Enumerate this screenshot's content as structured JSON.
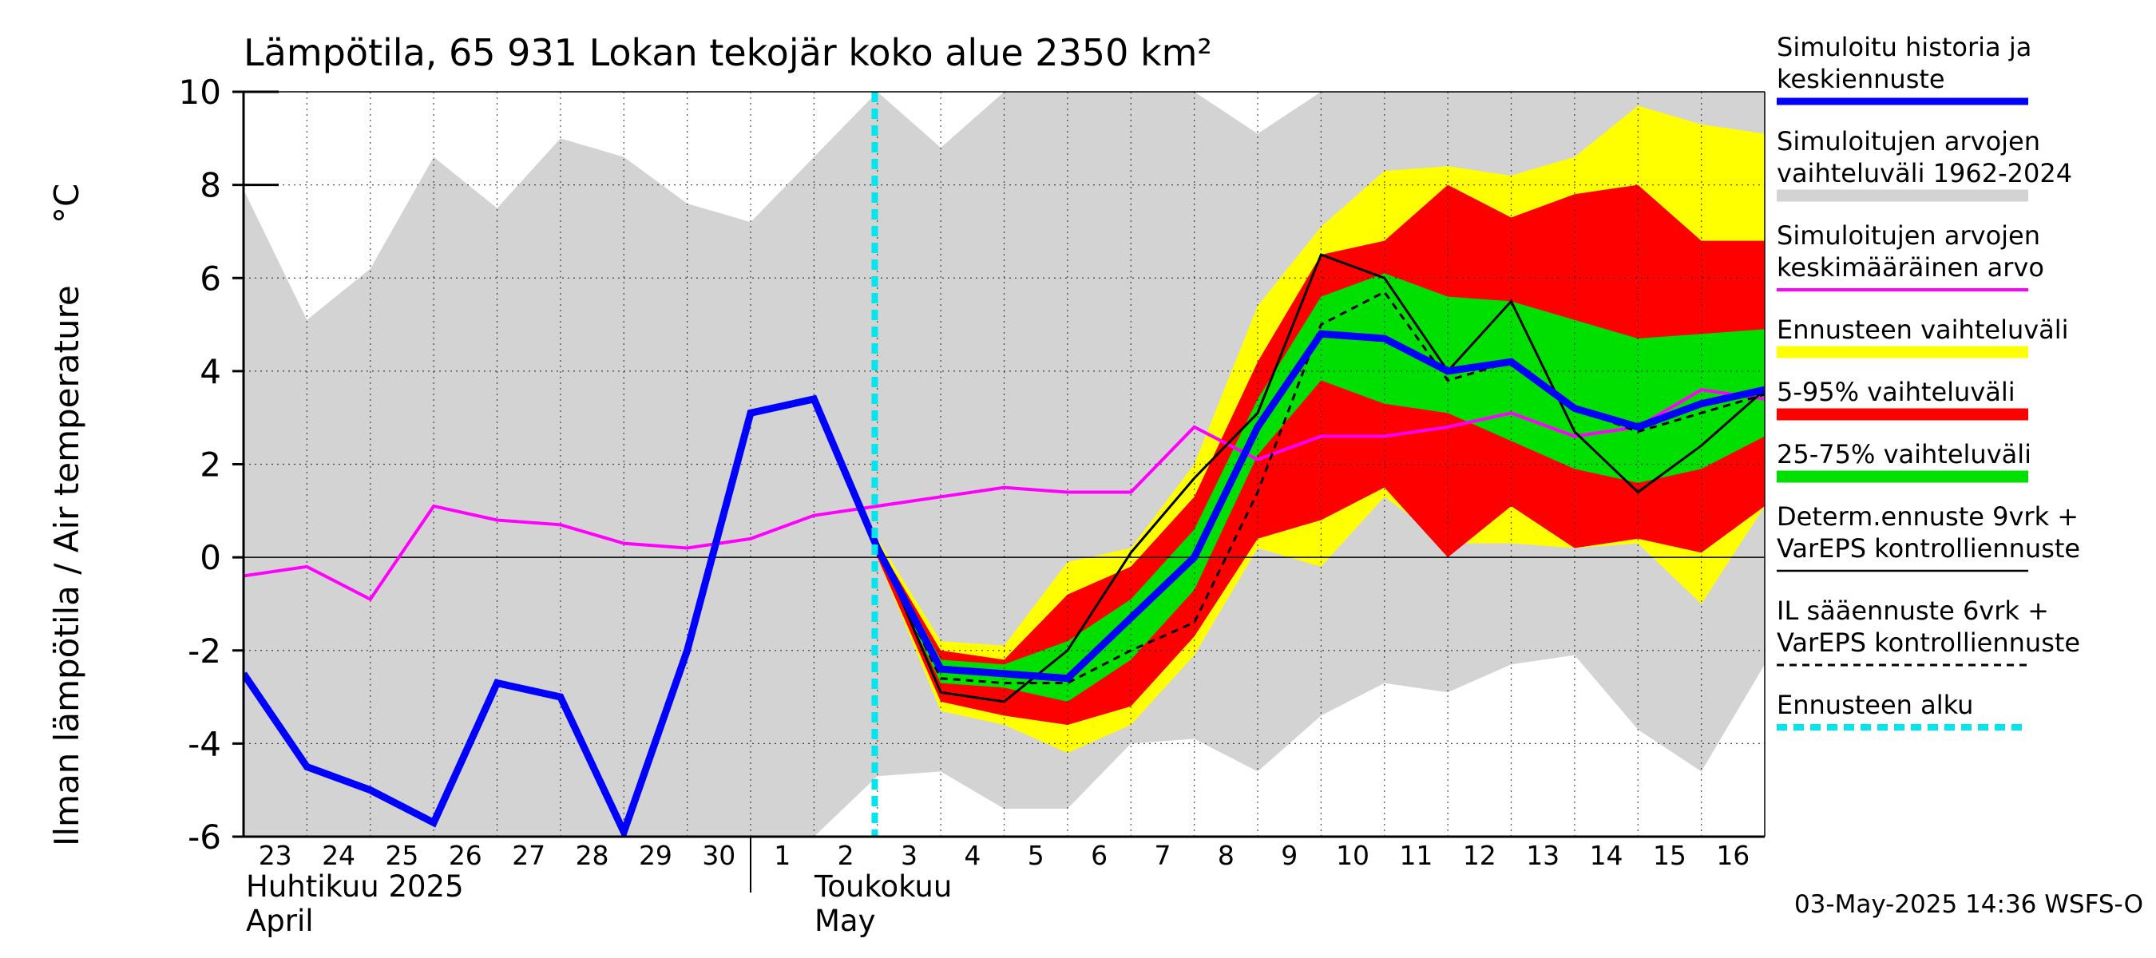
{
  "title": "Lämpötila, 65 931 Lokan tekojär koko alue 2350 km²",
  "y_axis_label": "Ilman lämpötila / Air temperature",
  "y_unit": "°C",
  "timestamp": "03-May-2025 14:36 WSFS-O",
  "month_labels": [
    {
      "fi": "Huhtikuu  2025",
      "en": "April"
    },
    {
      "fi": "Toukokuu",
      "en": "May"
    }
  ],
  "colors": {
    "history_and_mean": "#0000ff",
    "historical_range": "#d3d3d3",
    "historical_mean": "#ff00ff",
    "forecast_range": "#ffff00",
    "p5_95": "#ff0000",
    "p25_75": "#00e000",
    "determ": "#000000",
    "il_forecast": "#000000",
    "forecast_start": "#00e5ee"
  },
  "legend": [
    {
      "label": [
        "Simuloitu historia ja",
        "keskiennuste"
      ],
      "color": "#0000ff",
      "style": "thick"
    },
    {
      "label": [
        "Simuloitujen arvojen",
        "vaihteluväli 1962-2024"
      ],
      "color": "#d3d3d3",
      "style": "band"
    },
    {
      "label": [
        "Simuloitujen arvojen",
        "keskimääräinen arvo"
      ],
      "color": "#ff00ff",
      "style": "line"
    },
    {
      "label": [
        "Ennusteen vaihteluväli"
      ],
      "color": "#ffff00",
      "style": "band"
    },
    {
      "label": [
        "5-95% vaihteluväli"
      ],
      "color": "#ff0000",
      "style": "band"
    },
    {
      "label": [
        "25-75% vaihteluväli"
      ],
      "color": "#00e000",
      "style": "band"
    },
    {
      "label": [
        "Determ.ennuste 9vrk +",
        "VarEPS kontrolliennuste"
      ],
      "color": "#000000",
      "style": "thin"
    },
    {
      "label": [
        "IL sääennuste 6vrk  +",
        "  VarEPS kontrolliennuste"
      ],
      "color": "#000000",
      "style": "dashed"
    },
    {
      "label": [
        "Ennusteen alku"
      ],
      "color": "#00e5ee",
      "style": "cyan-dashed"
    }
  ],
  "chart_data": {
    "type": "line",
    "title": "Lämpötila, 65 931 Lokan tekojär koko alue 2350 km²",
    "ylabel": "Ilman lämpötila / Air temperature   °C",
    "ylim": [
      -6,
      10
    ],
    "yticks": [
      -6,
      -4,
      -2,
      0,
      2,
      4,
      6,
      8,
      10
    ],
    "x_day_labels": [
      "23",
      "24",
      "25",
      "26",
      "27",
      "28",
      "29",
      "30",
      "1",
      "2",
      "3",
      "4",
      "5",
      "6",
      "7",
      "8",
      "9",
      "10",
      "11",
      "12",
      "13",
      "14",
      "15",
      "16"
    ],
    "x_dates": [
      "2025-04-23",
      "2025-04-24",
      "2025-04-25",
      "2025-04-26",
      "2025-04-27",
      "2025-04-28",
      "2025-04-29",
      "2025-04-30",
      "2025-05-01",
      "2025-05-02",
      "2025-05-03",
      "2025-05-04",
      "2025-05-05",
      "2025-05-06",
      "2025-05-07",
      "2025-05-08",
      "2025-05-09",
      "2025-05-10",
      "2025-05-11",
      "2025-05-12",
      "2025-05-13",
      "2025-05-14",
      "2025-05-15",
      "2025-05-16",
      "2025-05-17"
    ],
    "forecast_start": "2025-05-02 23:00",
    "grid": true,
    "legend_position": "right",
    "series": [
      {
        "name": "Simuloitujen arvojen vaihteluväli 1962-2024",
        "kind": "band",
        "x": [
          "2025-04-23",
          "2025-04-24",
          "2025-04-25",
          "2025-04-26",
          "2025-04-27",
          "2025-04-28",
          "2025-04-29",
          "2025-04-30",
          "2025-05-01",
          "2025-05-02",
          "2025-05-03",
          "2025-05-04",
          "2025-05-05",
          "2025-05-06",
          "2025-05-07",
          "2025-05-08",
          "2025-05-09",
          "2025-05-10",
          "2025-05-11",
          "2025-05-12",
          "2025-05-13",
          "2025-05-14",
          "2025-05-15",
          "2025-05-16",
          "2025-05-17"
        ],
        "lower": [
          -6,
          -6,
          -6,
          -6,
          -6,
          -6,
          -6,
          -6,
          -6,
          -6,
          -4.7,
          -4.6,
          -5.4,
          -5.4,
          -4,
          -3.9,
          -4.6,
          -3.4,
          -2.7,
          -2.9,
          -2.3,
          -2.1,
          -3.7,
          -4.6,
          -2.3
        ],
        "upper": [
          7.9,
          5.1,
          6.2,
          8.6,
          7.5,
          9,
          8.6,
          7.6,
          7.2,
          8.6,
          10,
          8.8,
          10,
          10,
          10,
          10,
          9.1,
          10,
          10,
          10,
          10,
          10,
          10,
          10,
          10
        ]
      },
      {
        "name": "Ennusteen vaihteluväli",
        "kind": "band",
        "x": [
          "2025-05-02",
          "2025-05-03",
          "2025-05-04",
          "2025-05-05",
          "2025-05-06",
          "2025-05-07",
          "2025-05-08",
          "2025-05-09",
          "2025-05-10",
          "2025-05-11",
          "2025-05-12",
          "2025-05-13",
          "2025-05-14",
          "2025-05-15",
          "2025-05-16",
          "2025-05-17"
        ],
        "lower": [
          3.4,
          0,
          -3.3,
          -3.6,
          -4.2,
          -3.6,
          -2.1,
          0.2,
          -0.2,
          1.3,
          0.3,
          0.3,
          0.2,
          0.3,
          -1,
          1.1
        ],
        "upper": [
          3.4,
          0.4,
          -1.8,
          -1.9,
          -0.1,
          0.2,
          2,
          5.4,
          7.1,
          8.3,
          8.4,
          8.2,
          8.6,
          9.7,
          9.3,
          9.1
        ]
      },
      {
        "name": "5-95% vaihteluväli",
        "kind": "band",
        "x": [
          "2025-05-02",
          "2025-05-03",
          "2025-05-04",
          "2025-05-05",
          "2025-05-06",
          "2025-05-07",
          "2025-05-08",
          "2025-05-09",
          "2025-05-10",
          "2025-05-11",
          "2025-05-12",
          "2025-05-13",
          "2025-05-14",
          "2025-05-15",
          "2025-05-16",
          "2025-05-17"
        ],
        "lower": [
          3.4,
          0,
          -3.1,
          -3.4,
          -3.6,
          -3.2,
          -1.7,
          0.4,
          0.8,
          1.5,
          0,
          1.1,
          0.2,
          0.4,
          0.1,
          1.1
        ],
        "upper": [
          3.4,
          0.3,
          -2,
          -2.2,
          -0.8,
          -0.2,
          1.3,
          4.2,
          6.5,
          6.8,
          8,
          7.3,
          7.8,
          8,
          6.8,
          6.8
        ]
      },
      {
        "name": "25-75% vaihteluväli",
        "kind": "band",
        "x": [
          "2025-05-02",
          "2025-05-03",
          "2025-05-04",
          "2025-05-05",
          "2025-05-06",
          "2025-05-07",
          "2025-05-08",
          "2025-05-09",
          "2025-05-10",
          "2025-05-11",
          "2025-05-12",
          "2025-05-13",
          "2025-05-14",
          "2025-05-15",
          "2025-05-16",
          "2025-05-17"
        ],
        "lower": [
          3.4,
          0.1,
          -2.7,
          -2.8,
          -3.1,
          -2.2,
          -0.7,
          2.2,
          3.8,
          3.3,
          3.1,
          2.5,
          1.9,
          1.6,
          1.9,
          2.6
        ],
        "upper": [
          3.4,
          0.3,
          -2.2,
          -2.3,
          -1.8,
          -0.9,
          0.6,
          3.4,
          5.6,
          6.1,
          5.6,
          5.5,
          5.1,
          4.7,
          4.8,
          4.9
        ]
      },
      {
        "name": "Simuloitujen arvojen keskimääräinen arvo",
        "kind": "line",
        "x": [
          "2025-04-23",
          "2025-04-24",
          "2025-04-25",
          "2025-04-26",
          "2025-04-27",
          "2025-04-28",
          "2025-04-29",
          "2025-04-30",
          "2025-05-01",
          "2025-05-02",
          "2025-05-03",
          "2025-05-04",
          "2025-05-05",
          "2025-05-06",
          "2025-05-07",
          "2025-05-08",
          "2025-05-09",
          "2025-05-10",
          "2025-05-11",
          "2025-05-12",
          "2025-05-13",
          "2025-05-14",
          "2025-05-15",
          "2025-05-16",
          "2025-05-17"
        ],
        "values": [
          -0.4,
          -0.2,
          -0.9,
          1.1,
          0.8,
          0.7,
          0.3,
          0.2,
          0.4,
          0.9,
          1.1,
          1.3,
          1.5,
          1.4,
          1.4,
          2.8,
          2.1,
          2.6,
          2.6,
          2.8,
          3.1,
          2.6,
          2.8,
          3.6,
          3.4
        ]
      },
      {
        "name": "Determ.ennuste 9vrk + VarEPS kontrolliennuste",
        "kind": "line",
        "x": [
          "2025-05-02",
          "2025-05-03",
          "2025-05-04",
          "2025-05-05",
          "2025-05-06",
          "2025-05-07",
          "2025-05-08",
          "2025-05-09",
          "2025-05-10",
          "2025-05-11",
          "2025-05-12",
          "2025-05-13",
          "2025-05-14",
          "2025-05-15",
          "2025-05-16",
          "2025-05-17"
        ],
        "values": [
          3.4,
          0.3,
          -2.9,
          -3.1,
          -2,
          0.1,
          1.7,
          3.1,
          6.5,
          6,
          4,
          5.5,
          2.7,
          1.4,
          2.4,
          3.6
        ]
      },
      {
        "name": "IL sääennuste 6vrk + VarEPS kontrolliennuste",
        "kind": "dashed-line",
        "x": [
          "2025-05-02",
          "2025-05-03",
          "2025-05-04",
          "2025-05-05",
          "2025-05-06",
          "2025-05-07",
          "2025-05-08",
          "2025-05-09",
          "2025-05-10",
          "2025-05-11",
          "2025-05-12",
          "2025-05-13",
          "2025-05-14",
          "2025-05-15",
          "2025-05-16",
          "2025-05-17"
        ],
        "values": [
          3.4,
          0.2,
          -2.6,
          -2.7,
          -2.7,
          -2,
          -1.4,
          1.4,
          5,
          5.7,
          3.8,
          4.2,
          3.2,
          2.7,
          3.1,
          3.5
        ]
      },
      {
        "name": "Simuloitu historia ja keskiennuste",
        "kind": "line",
        "x": [
          "2025-04-23",
          "2025-04-24",
          "2025-04-25",
          "2025-04-26",
          "2025-04-27",
          "2025-04-28",
          "2025-04-29",
          "2025-04-30",
          "2025-05-01",
          "2025-05-02",
          "2025-05-03",
          "2025-05-04",
          "2025-05-05",
          "2025-05-06",
          "2025-05-07",
          "2025-05-08",
          "2025-05-09",
          "2025-05-10",
          "2025-05-11",
          "2025-05-12",
          "2025-05-13",
          "2025-05-14",
          "2025-05-15",
          "2025-05-16",
          "2025-05-17"
        ],
        "values": [
          -2.5,
          -4.5,
          -5,
          -5.7,
          -2.7,
          -3,
          -5.9,
          -2,
          3.1,
          3.4,
          0.2,
          -2.4,
          -2.5,
          -2.6,
          -1.3,
          0,
          2.8,
          4.8,
          4.7,
          4,
          4.2,
          3.2,
          2.8,
          3.3,
          3.6
        ]
      }
    ]
  }
}
